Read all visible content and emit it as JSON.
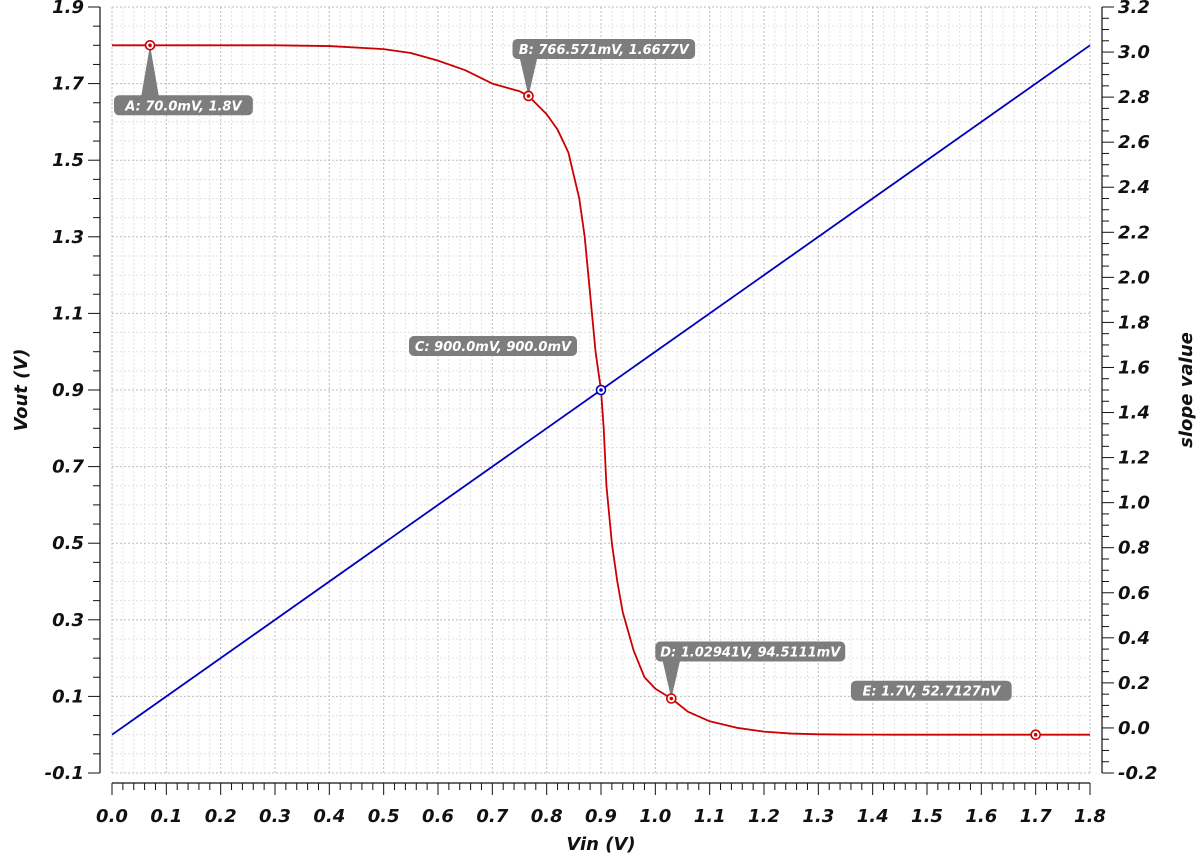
{
  "chart_data": {
    "type": "line",
    "xlabel": "Vin (V)",
    "ylabel_left": "Vout (V)",
    "ylabel_right": "slope value",
    "xlim": [
      0,
      1.8
    ],
    "ylim_left": [
      -0.1,
      1.9
    ],
    "ylim_right": [
      -0.2,
      3.2
    ],
    "x_ticks": [
      "0.0",
      "0.1",
      "0.2",
      "0.3",
      "0.4",
      "0.5",
      "0.6",
      "0.7",
      "0.8",
      "0.9",
      "1.0",
      "1.1",
      "1.2",
      "1.3",
      "1.4",
      "1.5",
      "1.6",
      "1.7",
      "1.8"
    ],
    "y_left_ticks": [
      "-0.1",
      "0.1",
      "0.3",
      "0.5",
      "0.7",
      "0.9",
      "1.1",
      "1.3",
      "1.5",
      "1.7",
      "1.9"
    ],
    "y_right_ticks": [
      "-0.2",
      "0.0",
      "0.2",
      "0.4",
      "0.6",
      "0.8",
      "1.0",
      "1.2",
      "1.4",
      "1.6",
      "1.8",
      "2.0",
      "2.2",
      "2.4",
      "2.6",
      "2.8",
      "3.0",
      "3.2"
    ],
    "grid": true,
    "series": [
      {
        "color": "#cc0000",
        "axis": "left",
        "x": [
          0,
          0.1,
          0.2,
          0.3,
          0.4,
          0.5,
          0.55,
          0.6,
          0.65,
          0.7,
          0.75,
          0.766571,
          0.8,
          0.82,
          0.84,
          0.86,
          0.87,
          0.88,
          0.89,
          0.895,
          0.9,
          0.905,
          0.91,
          0.92,
          0.93,
          0.94,
          0.96,
          0.98,
          1.0,
          1.02941,
          1.06,
          1.1,
          1.15,
          1.2,
          1.25,
          1.3,
          1.35,
          1.4,
          1.5,
          1.6,
          1.7,
          1.8
        ],
        "y": [
          1.8,
          1.8,
          1.8,
          1.8,
          1.798,
          1.79,
          1.78,
          1.76,
          1.735,
          1.7,
          1.68,
          1.6677,
          1.62,
          1.58,
          1.52,
          1.4,
          1.3,
          1.15,
          1.0,
          0.95,
          0.9,
          0.8,
          0.65,
          0.5,
          0.4,
          0.32,
          0.22,
          0.15,
          0.12,
          0.0945,
          0.06,
          0.035,
          0.018,
          0.008,
          0.003,
          0.001,
          0.0003,
          0.0001,
          0.0,
          0.0,
          0.0,
          0.0
        ]
      },
      {
        "color": "#0000bb",
        "axis": "left",
        "x": [
          0,
          1.8
        ],
        "y": [
          0,
          1.8
        ]
      }
    ],
    "markers": [
      {
        "label": "A: 70.0mV,  1.8V",
        "x": 0.07,
        "y": 1.8,
        "color": "#cc0000",
        "callout": "below-left"
      },
      {
        "label": "B: 766.571mV,  1.6677V",
        "x": 0.766571,
        "y": 1.6677,
        "color": "#cc0000",
        "callout": "above-right"
      },
      {
        "label": "C: 900.0mV,  900.0mV",
        "x": 0.9,
        "y": 0.9,
        "color": "#0000bb",
        "callout": "above-left"
      },
      {
        "label": "D: 1.02941V,  94.5111mV",
        "x": 1.02941,
        "y": 0.0945111,
        "color": "#cc0000",
        "callout": "above-right"
      },
      {
        "label": "E: 1.7V,  52.7127nV",
        "x": 1.7,
        "y": 0.0,
        "color": "#cc0000",
        "callout": "above-left"
      }
    ]
  }
}
